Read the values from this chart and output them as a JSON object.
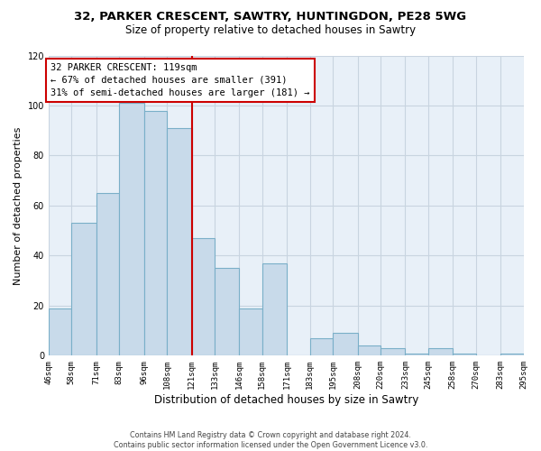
{
  "title": "32, PARKER CRESCENT, SAWTRY, HUNTINGDON, PE28 5WG",
  "subtitle": "Size of property relative to detached houses in Sawtry",
  "xlabel": "Distribution of detached houses by size in Sawtry",
  "ylabel": "Number of detached properties",
  "footer_lines": [
    "Contains HM Land Registry data © Crown copyright and database right 2024.",
    "Contains public sector information licensed under the Open Government Licence v3.0."
  ],
  "bin_labels": [
    "46sqm",
    "58sqm",
    "71sqm",
    "83sqm",
    "96sqm",
    "108sqm",
    "121sqm",
    "133sqm",
    "146sqm",
    "158sqm",
    "171sqm",
    "183sqm",
    "195sqm",
    "208sqm",
    "220sqm",
    "233sqm",
    "245sqm",
    "258sqm",
    "270sqm",
    "283sqm",
    "295sqm"
  ],
  "bin_edges": [
    46,
    58,
    71,
    83,
    96,
    108,
    121,
    133,
    146,
    158,
    171,
    183,
    195,
    208,
    220,
    233,
    245,
    258,
    270,
    283,
    295
  ],
  "bar_heights": [
    19,
    53,
    65,
    101,
    98,
    91,
    47,
    35,
    19,
    37,
    0,
    7,
    9,
    4,
    3,
    1,
    3,
    1,
    0,
    1,
    1
  ],
  "bar_color": "#c8daea",
  "bar_edge_color": "#7aafc8",
  "property_line_x": 121,
  "property_line_color": "#cc0000",
  "annotation_title": "32 PARKER CRESCENT: 119sqm",
  "annotation_line1": "← 67% of detached houses are smaller (391)",
  "annotation_line2": "31% of semi-detached houses are larger (181) →",
  "annotation_box_color": "#ffffff",
  "annotation_box_edge": "#cc0000",
  "ylim": [
    0,
    120
  ],
  "yticks": [
    0,
    20,
    40,
    60,
    80,
    100,
    120
  ],
  "background_color": "#ffffff",
  "plot_background": "#e8f0f8",
  "grid_color": "#c8d4e0"
}
